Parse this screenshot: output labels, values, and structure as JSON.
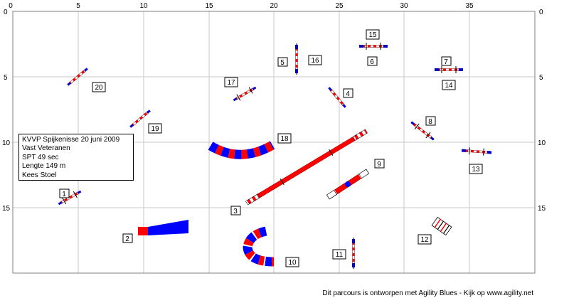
{
  "course_info": {
    "line1": "KVVP Spijkenisse 20 juni 2009",
    "line2": "Vast Veteranen",
    "line3": "SPT 49 sec",
    "line4": "Lengte 149 m",
    "line5": "Kees Stoel"
  },
  "footer": "Dit parcours is ontworpen met Agility Blues - Kijk op www.agility.net",
  "axis": {
    "x_ticks": [
      "0",
      "5",
      "10",
      "15",
      "20",
      "25",
      "30",
      "35"
    ],
    "y_ticks": [
      "0",
      "5",
      "10",
      "15"
    ]
  },
  "colors": {
    "bar_red": "#ff0000",
    "wing_blue": "#0000cc",
    "tunnel_blue": "#0000ff",
    "pole_black": "#000000"
  },
  "obstacles": [
    {
      "number": "1",
      "type": "hurdle",
      "x": 4.8,
      "y": 14.3,
      "angle": -30
    },
    {
      "number": "2",
      "type": "chute_tunnel",
      "x": 11.5,
      "y": 16.8
    },
    {
      "number": "3",
      "type": "dog_walk",
      "x": 22,
      "y": 12.3
    },
    {
      "number": "4",
      "type": "hurdle",
      "x": 25,
      "y": 7.1,
      "angle": 50
    },
    {
      "number": "5",
      "type": "hurdle",
      "x": 21.9,
      "y": 3.9,
      "angle": 90
    },
    {
      "number": "6",
      "type": "hurdle",
      "x": 27.7,
      "y": 2.6,
      "angle": 0
    },
    {
      "number": "7",
      "type": "hurdle",
      "x": 33.1,
      "y": 4.4,
      "angle": 0
    },
    {
      "number": "8",
      "type": "hurdle",
      "x": 31.2,
      "y": 9.3,
      "angle": 40
    },
    {
      "number": "9",
      "type": "seesaw",
      "x": 26.3,
      "y": 12.8
    },
    {
      "number": "10",
      "type": "curved_tunnel",
      "x": 19,
      "y": 18
    },
    {
      "number": "11",
      "type": "hurdle",
      "x": 26.2,
      "y": 18.5,
      "angle": 90
    },
    {
      "number": "12",
      "type": "tire_jump",
      "x": 32.8,
      "y": 17.0
    },
    {
      "number": "13",
      "type": "hurdle",
      "x": 34.9,
      "y": 10.6,
      "angle": 5
    },
    {
      "number": "14",
      "type": "hurdle",
      "x": 33.1,
      "y": 4.4,
      "angle": 0
    },
    {
      "number": "15",
      "type": "hurdle",
      "x": 27.7,
      "y": 2.6,
      "angle": 0
    },
    {
      "number": "16",
      "type": "hurdle",
      "x": 21.9,
      "y": 3.9,
      "angle": 90
    },
    {
      "number": "17",
      "type": "hurdle",
      "x": 17.8,
      "y": 6.2,
      "angle": -30
    },
    {
      "number": "18",
      "type": "curved_tunnel",
      "x": 17.5,
      "y": 10.3
    },
    {
      "number": "19",
      "type": "hurdle",
      "x": 9.8,
      "y": 8.1,
      "angle": -40
    },
    {
      "number": "20",
      "type": "hurdle",
      "x": 4.9,
      "y": 5.3,
      "angle": -40
    }
  ]
}
